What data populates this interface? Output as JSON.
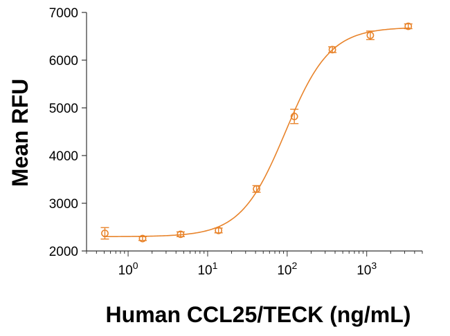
{
  "chart_data": {
    "type": "scatter",
    "title": "",
    "xlabel": "Human CCL25/TECK (ng/mL)",
    "ylabel": "Mean RFU",
    "x_scale": "log",
    "xlim": [
      0.3,
      5000
    ],
    "ylim": [
      2000,
      7000
    ],
    "y_ticks": [
      {
        "value": 2000,
        "label": "2000"
      },
      {
        "value": 3000,
        "label": "3000"
      },
      {
        "value": 4000,
        "label": "4000"
      },
      {
        "value": 5000,
        "label": "5000"
      },
      {
        "value": 6000,
        "label": "6000"
      },
      {
        "value": 7000,
        "label": "7000"
      }
    ],
    "x_ticks": [
      {
        "value": 1,
        "base": "10",
        "exp": "0"
      },
      {
        "value": 10,
        "base": "10",
        "exp": "1"
      },
      {
        "value": 100,
        "base": "10",
        "exp": "2"
      },
      {
        "value": 1000,
        "base": "10",
        "exp": "3"
      }
    ],
    "color": "#e8832a",
    "series": [
      {
        "points": [
          {
            "x": 0.51,
            "y": 2370,
            "err": 120
          },
          {
            "x": 1.52,
            "y": 2260,
            "err": 40
          },
          {
            "x": 4.57,
            "y": 2350,
            "err": 50
          },
          {
            "x": 13.7,
            "y": 2430,
            "err": 50
          },
          {
            "x": 41.2,
            "y": 3300,
            "err": 70
          },
          {
            "x": 123,
            "y": 4820,
            "err": 150
          },
          {
            "x": 370,
            "y": 6220,
            "err": 60
          },
          {
            "x": 1110,
            "y": 6520,
            "err": 90
          },
          {
            "x": 3330,
            "y": 6710,
            "err": 50
          }
        ]
      }
    ],
    "fit": {
      "model": "4PL",
      "bottom": 2300,
      "top": 6690,
      "ec50": 95,
      "hill": 1.55
    },
    "grid": false,
    "legend": "none"
  }
}
